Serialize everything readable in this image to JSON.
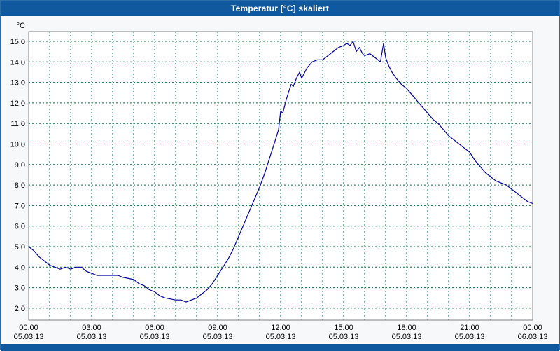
{
  "window": {
    "title": "Temperatur [°C] skaliert"
  },
  "colors": {
    "titlebar": "#10599F",
    "window_border": "#2E6DA4",
    "background": "#F6F8FA",
    "plot_background": "#FFFFFF",
    "grid": "#007040",
    "frame": "#808080",
    "line": "#0000A0"
  },
  "chart_data": {
    "type": "line",
    "title": "Temperatur [°C] skaliert",
    "ylabel": "°C",
    "xlabel": "",
    "ylim": [
      2,
      15
    ],
    "xlim": [
      0,
      24
    ],
    "grid": {
      "on": true,
      "x_interval_hours": 1,
      "y_interval": 1,
      "style": "dashed"
    },
    "legend_position": "none",
    "ytick_labels_top_to_bottom": [
      "15,0",
      "14,0",
      "13,0",
      "12,0",
      "11,0",
      "10,0",
      "9,0",
      "8,0",
      "7,0",
      "6,0",
      "5,0",
      "4,0",
      "3,0",
      "2,0"
    ],
    "xticks": [
      {
        "hour": 0,
        "time": "00:00",
        "date": "05.03.13"
      },
      {
        "hour": 3,
        "time": "03:00",
        "date": "05.03.13"
      },
      {
        "hour": 6,
        "time": "06:00",
        "date": "05.03.13"
      },
      {
        "hour": 9,
        "time": "09:00",
        "date": "05.03.13"
      },
      {
        "hour": 12,
        "time": "12:00",
        "date": "05.03.13"
      },
      {
        "hour": 15,
        "time": "15:00",
        "date": "05.03.13"
      },
      {
        "hour": 18,
        "time": "18:00",
        "date": "05.03.13"
      },
      {
        "hour": 21,
        "time": "21:00",
        "date": "05.03.13"
      },
      {
        "hour": 24,
        "time": "00:00",
        "date": "06.03.13"
      }
    ],
    "series": [
      {
        "name": "Temperatur",
        "color": "#0000A0",
        "points_hour_temp": [
          [
            0,
            5.0
          ],
          [
            0.25,
            4.8
          ],
          [
            0.5,
            4.5
          ],
          [
            0.75,
            4.3
          ],
          [
            1,
            4.1
          ],
          [
            1.25,
            4.0
          ],
          [
            1.5,
            3.9
          ],
          [
            1.75,
            4.0
          ],
          [
            2,
            3.9
          ],
          [
            2.25,
            4.0
          ],
          [
            2.5,
            4.0
          ],
          [
            2.75,
            3.8
          ],
          [
            3,
            3.7
          ],
          [
            3.25,
            3.6
          ],
          [
            3.5,
            3.6
          ],
          [
            4,
            3.6
          ],
          [
            4.25,
            3.6
          ],
          [
            4.5,
            3.5
          ],
          [
            5,
            3.4
          ],
          [
            5.25,
            3.2
          ],
          [
            5.5,
            3.1
          ],
          [
            5.75,
            2.9
          ],
          [
            6,
            2.8
          ],
          [
            6.25,
            2.6
          ],
          [
            6.5,
            2.5
          ],
          [
            7,
            2.4
          ],
          [
            7.25,
            2.4
          ],
          [
            7.5,
            2.3
          ],
          [
            7.75,
            2.4
          ],
          [
            8,
            2.5
          ],
          [
            8.25,
            2.7
          ],
          [
            8.5,
            2.9
          ],
          [
            8.75,
            3.2
          ],
          [
            9,
            3.6
          ],
          [
            9.25,
            4.0
          ],
          [
            9.5,
            4.4
          ],
          [
            9.75,
            4.9
          ],
          [
            10,
            5.5
          ],
          [
            10.25,
            6.1
          ],
          [
            10.5,
            6.7
          ],
          [
            10.75,
            7.3
          ],
          [
            11,
            7.9
          ],
          [
            11.25,
            8.6
          ],
          [
            11.5,
            9.4
          ],
          [
            11.75,
            10.2
          ],
          [
            11.9,
            10.7
          ],
          [
            12,
            11.6
          ],
          [
            12.1,
            11.5
          ],
          [
            12.25,
            12.1
          ],
          [
            12.4,
            12.6
          ],
          [
            12.5,
            12.9
          ],
          [
            12.6,
            12.8
          ],
          [
            12.75,
            13.2
          ],
          [
            12.9,
            13.5
          ],
          [
            13,
            13.2
          ],
          [
            13.25,
            13.7
          ],
          [
            13.5,
            14.0
          ],
          [
            13.75,
            14.1
          ],
          [
            14,
            14.1
          ],
          [
            14.25,
            14.3
          ],
          [
            14.5,
            14.5
          ],
          [
            14.75,
            14.7
          ],
          [
            15,
            14.8
          ],
          [
            15.15,
            14.9
          ],
          [
            15.3,
            14.8
          ],
          [
            15.45,
            15.0
          ],
          [
            15.6,
            14.5
          ],
          [
            15.75,
            14.7
          ],
          [
            15.9,
            14.4
          ],
          [
            16,
            14.3
          ],
          [
            16.25,
            14.4
          ],
          [
            16.5,
            14.2
          ],
          [
            16.75,
            14.0
          ],
          [
            16.9,
            14.9
          ],
          [
            17,
            14.2
          ],
          [
            17.15,
            13.8
          ],
          [
            17.3,
            13.5
          ],
          [
            17.5,
            13.2
          ],
          [
            17.75,
            12.9
          ],
          [
            18,
            12.7
          ],
          [
            18.25,
            12.4
          ],
          [
            18.5,
            12.1
          ],
          [
            18.75,
            11.8
          ],
          [
            19,
            11.5
          ],
          [
            19.25,
            11.2
          ],
          [
            19.5,
            11.0
          ],
          [
            19.75,
            10.7
          ],
          [
            20,
            10.4
          ],
          [
            20.25,
            10.2
          ],
          [
            20.5,
            10.0
          ],
          [
            20.75,
            9.8
          ],
          [
            21,
            9.6
          ],
          [
            21.25,
            9.2
          ],
          [
            21.5,
            8.9
          ],
          [
            21.75,
            8.6
          ],
          [
            22,
            8.4
          ],
          [
            22.25,
            8.2
          ],
          [
            22.5,
            8.1
          ],
          [
            22.75,
            8.0
          ],
          [
            23,
            7.8
          ],
          [
            23.25,
            7.6
          ],
          [
            23.5,
            7.4
          ],
          [
            23.75,
            7.2
          ],
          [
            24,
            7.1
          ]
        ]
      }
    ]
  }
}
